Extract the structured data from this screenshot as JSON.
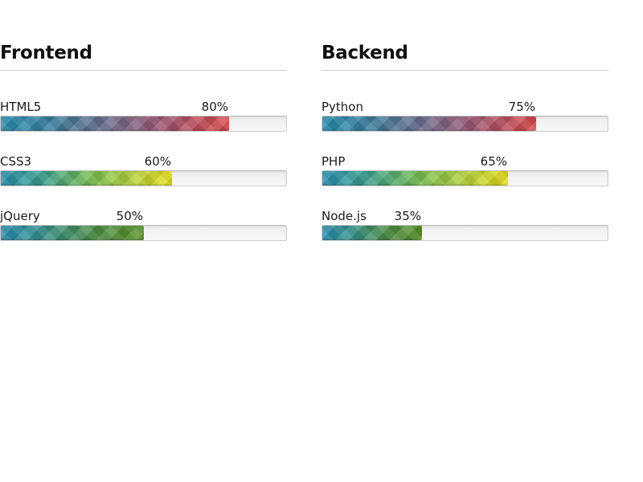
{
  "sections": [
    {
      "title": "Frontend",
      "skills": [
        {
          "label": "HTML5",
          "percent_text": "80%",
          "value": 80,
          "style": "red"
        },
        {
          "label": "CSS3",
          "percent_text": "60%",
          "value": 60,
          "style": "yellow"
        },
        {
          "label": "jQuery",
          "percent_text": "50%",
          "value": 50,
          "style": "green"
        }
      ]
    },
    {
      "title": "Backend",
      "skills": [
        {
          "label": "Python",
          "percent_text": "75%",
          "value": 75,
          "style": "red"
        },
        {
          "label": "PHP",
          "percent_text": "65%",
          "value": 65,
          "style": "yellow"
        },
        {
          "label": "Node.js",
          "percent_text": "35%",
          "value": 35,
          "style": "green"
        }
      ]
    }
  ],
  "colors": {
    "red_end": "#d94a4a",
    "yellow_end": "#e4dc14",
    "green_end": "#5a9228",
    "start": "#2a8fb0"
  }
}
